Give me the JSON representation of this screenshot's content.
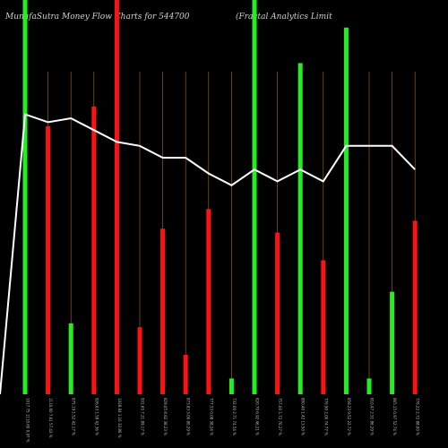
{
  "chart_data": {
    "type": "bar",
    "title_left": "MunafaSutra  Money Flow  Charts for 544700",
    "title_right": "(Fractal Analytics Limit",
    "colors": {
      "up": "#22ee22",
      "down": "#ff1111",
      "line": "#ffffff",
      "grid": "#b36a00",
      "background": "#000000"
    },
    "ylim": [
      0,
      100
    ],
    "bars": [
      {
        "label": "1017.75 1110.60 0.97 %",
        "value": 100,
        "color": "up"
      },
      {
        "label": "1110.60 7.61 57.43 %",
        "value": 68,
        "color": "down"
      },
      {
        "label": "875.19 1.52 42.17 %",
        "value": 18,
        "color": "up"
      },
      {
        "label": "926.63 1.58 42.36 %",
        "value": 73,
        "color": "down"
      },
      {
        "label": "1028.84 1.16 32.86 %",
        "value": 100,
        "color": "down"
      },
      {
        "label": "931.65 7.21 89.17 %",
        "value": 17,
        "color": "down"
      },
      {
        "label": "829.05 8.82 38.23 %",
        "value": 42,
        "color": "down"
      },
      {
        "label": "873.83 3.00 80.29 %",
        "value": 10,
        "color": "down"
      },
      {
        "label": "777.53 0.08 38.24 %",
        "value": 47,
        "color": "down"
      },
      {
        "label": "732.00 2.71 74.54 %",
        "value": 4,
        "color": "up"
      },
      {
        "label": "820.70 6.92 46.21 %",
        "value": 100,
        "color": "up"
      },
      {
        "label": "757.00 1.72 76.27 %",
        "value": 41,
        "color": "down"
      },
      {
        "label": "800.40 1.42 13.50 %",
        "value": 84,
        "color": "up"
      },
      {
        "label": "776.90 2.00 74.77 %",
        "value": 34,
        "color": "down"
      },
      {
        "label": "858.23 9.52 22.72 %",
        "value": 93,
        "color": "up"
      },
      {
        "label": "810.47 2.51 86.29 %",
        "value": 4,
        "color": "up"
      },
      {
        "label": "865.15 0.97 52.74 %",
        "value": 26,
        "color": "up"
      },
      {
        "label": "776.22 2.72 88.00 %",
        "value": 44,
        "color": "down"
      }
    ],
    "line": [
      0,
      71,
      69,
      70,
      67,
      64,
      63,
      60,
      60,
      56,
      53,
      57,
      54,
      57,
      54,
      63,
      63,
      63,
      57
    ]
  }
}
